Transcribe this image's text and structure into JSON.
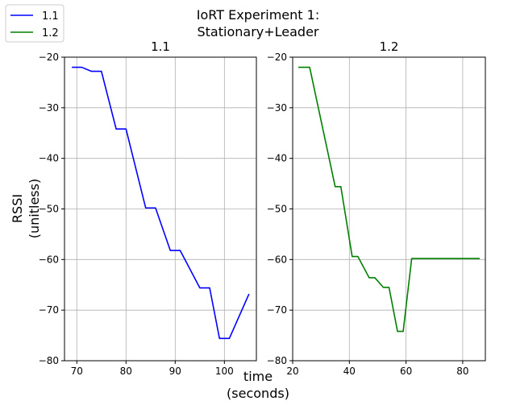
{
  "suptitle": [
    "IoRT Experiment 1:",
    "Stationary+Leader"
  ],
  "shared_xlabel": [
    "time",
    "(seconds)"
  ],
  "shared_ylabel": [
    "RSSI",
    "(unitless)"
  ],
  "legend": {
    "placement": "top-left",
    "entries": [
      {
        "name": "1.1",
        "color": "#0000ff"
      },
      {
        "name": "1.2",
        "color": "#008000"
      }
    ]
  },
  "chart_data": [
    {
      "type": "line",
      "title": "1.1",
      "xlabel": "time (seconds)",
      "ylabel": "RSSI (unitless)",
      "xlim": [
        67.5,
        106.5
      ],
      "ylim": [
        -80,
        -20
      ],
      "xticks": [
        70,
        80,
        90,
        100
      ],
      "yticks": [
        -80,
        -70,
        -60,
        -50,
        -40,
        -30,
        -20
      ],
      "grid": true,
      "series": [
        {
          "name": "1.1",
          "color": "#0000ff",
          "x": [
            69,
            71,
            73,
            75,
            78,
            80,
            84,
            86,
            89,
            91,
            95,
            97,
            99,
            101,
            105
          ],
          "y": [
            -22,
            -22,
            -22.8,
            -22.8,
            -34.2,
            -34.2,
            -49.8,
            -49.8,
            -58.2,
            -58.2,
            -65.6,
            -65.6,
            -75.6,
            -75.6,
            -66.8
          ]
        }
      ]
    },
    {
      "type": "line",
      "title": "1.2",
      "xlabel": "time (seconds)",
      "ylabel": "RSSI (unitless)",
      "xlim": [
        20,
        88
      ],
      "ylim": [
        -80,
        -20
      ],
      "xticks": [
        20,
        40,
        60,
        80
      ],
      "yticks": [
        -80,
        -70,
        -60,
        -50,
        -40,
        -30,
        -20
      ],
      "grid": true,
      "series": [
        {
          "name": "1.2",
          "color": "#008000",
          "x": [
            22,
            26,
            35,
            37,
            41,
            43,
            47,
            49,
            52,
            54,
            57,
            59,
            62,
            86
          ],
          "y": [
            -22,
            -22,
            -45.6,
            -45.6,
            -59.4,
            -59.4,
            -63.6,
            -63.6,
            -65.5,
            -65.5,
            -74.2,
            -74.2,
            -59.8,
            -59.8
          ]
        }
      ]
    }
  ]
}
